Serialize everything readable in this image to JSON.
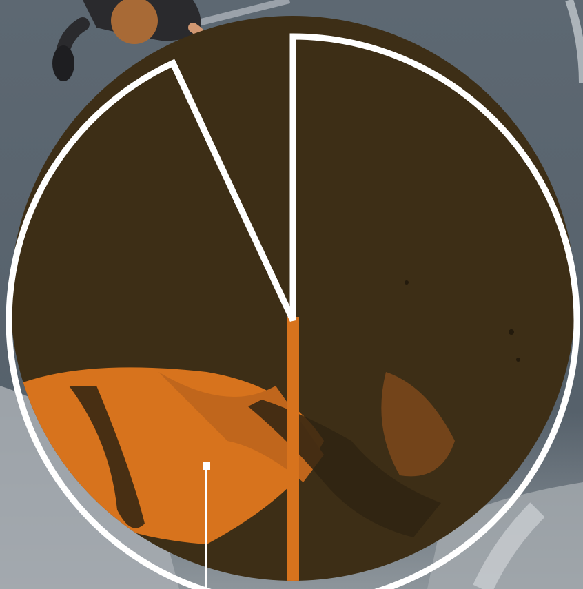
{
  "chart_data": {
    "type": "pie",
    "categories": [],
    "values": [],
    "exploded_slice_fraction": 0.0694
  },
  "colors": {
    "asphalt": "#5d6872",
    "asphalt_dark": "#3b434b",
    "concrete": "#9ea4a9",
    "tint_shadow": "#3c2c14",
    "tint_light": "#d9741c",
    "outline": "#ffffff",
    "runner_shirt": "#c9d6e2",
    "runner_shorts": "#e04a18",
    "runner_hair": "#3a2414",
    "runner_skin": "#d97b48"
  }
}
